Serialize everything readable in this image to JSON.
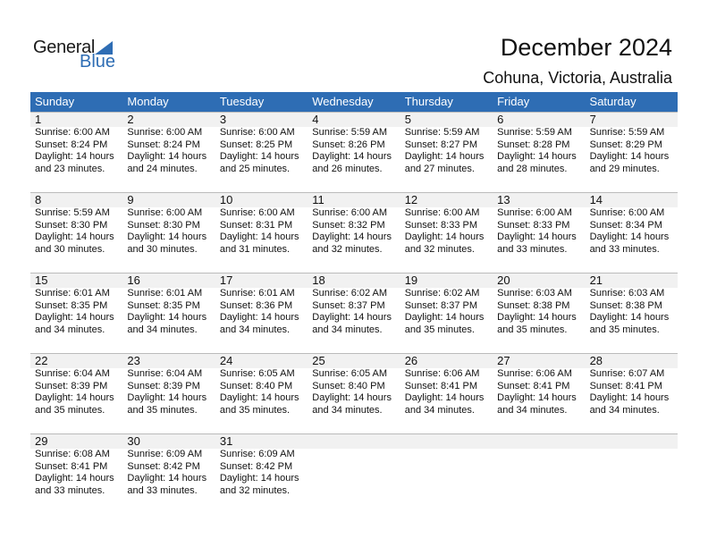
{
  "logo": {
    "general": "General",
    "blue": "Blue"
  },
  "header": {
    "title": "December 2024",
    "location": "Cohuna, Victoria, Australia"
  },
  "colors": {
    "accent": "#2E6DB4",
    "band": "#F1F1F1"
  },
  "weekdays": [
    "Sunday",
    "Monday",
    "Tuesday",
    "Wednesday",
    "Thursday",
    "Friday",
    "Saturday"
  ],
  "weeks": [
    [
      {
        "day": "1",
        "sunrise": "Sunrise: 6:00 AM",
        "sunset": "Sunset: 8:24 PM",
        "daylight": "Daylight: 14 hours",
        "minutes": "and 23 minutes."
      },
      {
        "day": "2",
        "sunrise": "Sunrise: 6:00 AM",
        "sunset": "Sunset: 8:24 PM",
        "daylight": "Daylight: 14 hours",
        "minutes": "and 24 minutes."
      },
      {
        "day": "3",
        "sunrise": "Sunrise: 6:00 AM",
        "sunset": "Sunset: 8:25 PM",
        "daylight": "Daylight: 14 hours",
        "minutes": "and 25 minutes."
      },
      {
        "day": "4",
        "sunrise": "Sunrise: 5:59 AM",
        "sunset": "Sunset: 8:26 PM",
        "daylight": "Daylight: 14 hours",
        "minutes": "and 26 minutes."
      },
      {
        "day": "5",
        "sunrise": "Sunrise: 5:59 AM",
        "sunset": "Sunset: 8:27 PM",
        "daylight": "Daylight: 14 hours",
        "minutes": "and 27 minutes."
      },
      {
        "day": "6",
        "sunrise": "Sunrise: 5:59 AM",
        "sunset": "Sunset: 8:28 PM",
        "daylight": "Daylight: 14 hours",
        "minutes": "and 28 minutes."
      },
      {
        "day": "7",
        "sunrise": "Sunrise: 5:59 AM",
        "sunset": "Sunset: 8:29 PM",
        "daylight": "Daylight: 14 hours",
        "minutes": "and 29 minutes."
      }
    ],
    [
      {
        "day": "8",
        "sunrise": "Sunrise: 5:59 AM",
        "sunset": "Sunset: 8:30 PM",
        "daylight": "Daylight: 14 hours",
        "minutes": "and 30 minutes."
      },
      {
        "day": "9",
        "sunrise": "Sunrise: 6:00 AM",
        "sunset": "Sunset: 8:30 PM",
        "daylight": "Daylight: 14 hours",
        "minutes": "and 30 minutes."
      },
      {
        "day": "10",
        "sunrise": "Sunrise: 6:00 AM",
        "sunset": "Sunset: 8:31 PM",
        "daylight": "Daylight: 14 hours",
        "minutes": "and 31 minutes."
      },
      {
        "day": "11",
        "sunrise": "Sunrise: 6:00 AM",
        "sunset": "Sunset: 8:32 PM",
        "daylight": "Daylight: 14 hours",
        "minutes": "and 32 minutes."
      },
      {
        "day": "12",
        "sunrise": "Sunrise: 6:00 AM",
        "sunset": "Sunset: 8:33 PM",
        "daylight": "Daylight: 14 hours",
        "minutes": "and 32 minutes."
      },
      {
        "day": "13",
        "sunrise": "Sunrise: 6:00 AM",
        "sunset": "Sunset: 8:33 PM",
        "daylight": "Daylight: 14 hours",
        "minutes": "and 33 minutes."
      },
      {
        "day": "14",
        "sunrise": "Sunrise: 6:00 AM",
        "sunset": "Sunset: 8:34 PM",
        "daylight": "Daylight: 14 hours",
        "minutes": "and 33 minutes."
      }
    ],
    [
      {
        "day": "15",
        "sunrise": "Sunrise: 6:01 AM",
        "sunset": "Sunset: 8:35 PM",
        "daylight": "Daylight: 14 hours",
        "minutes": "and 34 minutes."
      },
      {
        "day": "16",
        "sunrise": "Sunrise: 6:01 AM",
        "sunset": "Sunset: 8:35 PM",
        "daylight": "Daylight: 14 hours",
        "minutes": "and 34 minutes."
      },
      {
        "day": "17",
        "sunrise": "Sunrise: 6:01 AM",
        "sunset": "Sunset: 8:36 PM",
        "daylight": "Daylight: 14 hours",
        "minutes": "and 34 minutes."
      },
      {
        "day": "18",
        "sunrise": "Sunrise: 6:02 AM",
        "sunset": "Sunset: 8:37 PM",
        "daylight": "Daylight: 14 hours",
        "minutes": "and 34 minutes."
      },
      {
        "day": "19",
        "sunrise": "Sunrise: 6:02 AM",
        "sunset": "Sunset: 8:37 PM",
        "daylight": "Daylight: 14 hours",
        "minutes": "and 35 minutes."
      },
      {
        "day": "20",
        "sunrise": "Sunrise: 6:03 AM",
        "sunset": "Sunset: 8:38 PM",
        "daylight": "Daylight: 14 hours",
        "minutes": "and 35 minutes."
      },
      {
        "day": "21",
        "sunrise": "Sunrise: 6:03 AM",
        "sunset": "Sunset: 8:38 PM",
        "daylight": "Daylight: 14 hours",
        "minutes": "and 35 minutes."
      }
    ],
    [
      {
        "day": "22",
        "sunrise": "Sunrise: 6:04 AM",
        "sunset": "Sunset: 8:39 PM",
        "daylight": "Daylight: 14 hours",
        "minutes": "and 35 minutes."
      },
      {
        "day": "23",
        "sunrise": "Sunrise: 6:04 AM",
        "sunset": "Sunset: 8:39 PM",
        "daylight": "Daylight: 14 hours",
        "minutes": "and 35 minutes."
      },
      {
        "day": "24",
        "sunrise": "Sunrise: 6:05 AM",
        "sunset": "Sunset: 8:40 PM",
        "daylight": "Daylight: 14 hours",
        "minutes": "and 35 minutes."
      },
      {
        "day": "25",
        "sunrise": "Sunrise: 6:05 AM",
        "sunset": "Sunset: 8:40 PM",
        "daylight": "Daylight: 14 hours",
        "minutes": "and 34 minutes."
      },
      {
        "day": "26",
        "sunrise": "Sunrise: 6:06 AM",
        "sunset": "Sunset: 8:41 PM",
        "daylight": "Daylight: 14 hours",
        "minutes": "and 34 minutes."
      },
      {
        "day": "27",
        "sunrise": "Sunrise: 6:06 AM",
        "sunset": "Sunset: 8:41 PM",
        "daylight": "Daylight: 14 hours",
        "minutes": "and 34 minutes."
      },
      {
        "day": "28",
        "sunrise": "Sunrise: 6:07 AM",
        "sunset": "Sunset: 8:41 PM",
        "daylight": "Daylight: 14 hours",
        "minutes": "and 34 minutes."
      }
    ],
    [
      {
        "day": "29",
        "sunrise": "Sunrise: 6:08 AM",
        "sunset": "Sunset: 8:41 PM",
        "daylight": "Daylight: 14 hours",
        "minutes": "and 33 minutes."
      },
      {
        "day": "30",
        "sunrise": "Sunrise: 6:09 AM",
        "sunset": "Sunset: 8:42 PM",
        "daylight": "Daylight: 14 hours",
        "minutes": "and 33 minutes."
      },
      {
        "day": "31",
        "sunrise": "Sunrise: 6:09 AM",
        "sunset": "Sunset: 8:42 PM",
        "daylight": "Daylight: 14 hours",
        "minutes": "and 32 minutes."
      }
    ]
  ]
}
